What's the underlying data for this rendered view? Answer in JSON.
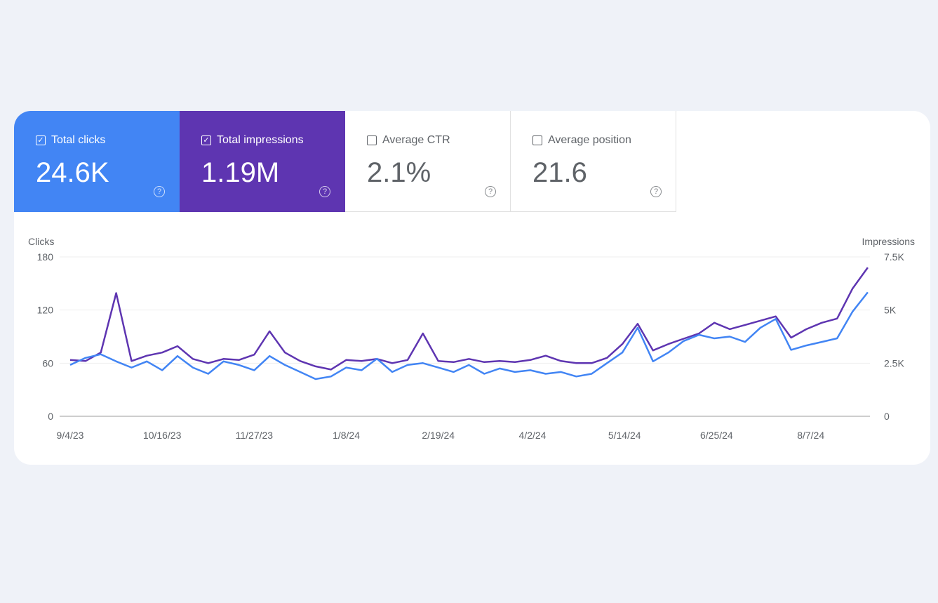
{
  "metrics": [
    {
      "label": "Total clicks",
      "value": "24.6K",
      "checked": true,
      "color": "#4285f4"
    },
    {
      "label": "Total impressions",
      "value": "1.19M",
      "checked": true,
      "color": "#5e35b1"
    },
    {
      "label": "Average CTR",
      "value": "2.1%",
      "checked": false
    },
    {
      "label": "Average position",
      "value": "21.6",
      "checked": false
    }
  ],
  "icons": {
    "checkbox_checked": "check-icon",
    "help": "help-circle-icon"
  },
  "chart_data": {
    "type": "line",
    "ylabel_left": "Clicks",
    "ylabel_right": "Impressions",
    "ylim_left": [
      0,
      180
    ],
    "ylim_right": [
      0,
      7500
    ],
    "yticks_left": [
      "0",
      "60",
      "120",
      "180"
    ],
    "yticks_right": [
      "0",
      "2.5K",
      "5K",
      "7.5K"
    ],
    "xticks": [
      "9/4/23",
      "10/16/23",
      "11/27/23",
      "1/8/24",
      "2/19/24",
      "4/2/24",
      "5/14/24",
      "6/25/24",
      "8/7/24"
    ],
    "xlim": [
      "2023-09-04",
      "2024-09-03"
    ],
    "grid": true,
    "x": [
      "2023-09-04",
      "2023-09-11",
      "2023-09-18",
      "2023-09-25",
      "2023-10-02",
      "2023-10-09",
      "2023-10-16",
      "2023-10-23",
      "2023-10-30",
      "2023-11-06",
      "2023-11-13",
      "2023-11-20",
      "2023-11-27",
      "2023-12-04",
      "2023-12-11",
      "2023-12-18",
      "2023-12-25",
      "2024-01-01",
      "2024-01-08",
      "2024-01-15",
      "2024-01-22",
      "2024-01-29",
      "2024-02-05",
      "2024-02-12",
      "2024-02-19",
      "2024-02-26",
      "2024-03-04",
      "2024-03-11",
      "2024-03-18",
      "2024-03-25",
      "2024-04-01",
      "2024-04-08",
      "2024-04-15",
      "2024-04-22",
      "2024-04-29",
      "2024-05-06",
      "2024-05-13",
      "2024-05-20",
      "2024-05-27",
      "2024-06-03",
      "2024-06-10",
      "2024-06-17",
      "2024-06-24",
      "2024-07-01",
      "2024-07-08",
      "2024-07-15",
      "2024-07-22",
      "2024-07-29",
      "2024-08-05",
      "2024-08-12",
      "2024-08-19",
      "2024-08-26",
      "2024-09-02"
    ],
    "series": [
      {
        "name": "Clicks",
        "axis": "left",
        "color": "#4285f4",
        "values": [
          58,
          66,
          70,
          62,
          55,
          62,
          52,
          68,
          55,
          48,
          62,
          58,
          52,
          68,
          58,
          50,
          42,
          45,
          55,
          52,
          65,
          50,
          58,
          60,
          55,
          50,
          58,
          48,
          54,
          50,
          52,
          48,
          50,
          45,
          48,
          60,
          72,
          100,
          62,
          72,
          85,
          92,
          88,
          90,
          84,
          100,
          110,
          75,
          80,
          84,
          88,
          118,
          140
        ]
      },
      {
        "name": "Impressions",
        "axis": "right",
        "color": "#5e35b1",
        "values": [
          2650,
          2600,
          3000,
          5800,
          2600,
          2850,
          3000,
          3300,
          2700,
          2500,
          2700,
          2650,
          2900,
          4000,
          3000,
          2600,
          2350,
          2200,
          2650,
          2600,
          2700,
          2500,
          2650,
          3900,
          2600,
          2550,
          2700,
          2550,
          2600,
          2550,
          2650,
          2850,
          2600,
          2500,
          2500,
          2750,
          3400,
          4350,
          3100,
          3400,
          3650,
          3900,
          4400,
          4100,
          4300,
          4500,
          4700,
          3700,
          4100,
          4400,
          4600,
          6000,
          7000
        ]
      }
    ]
  }
}
